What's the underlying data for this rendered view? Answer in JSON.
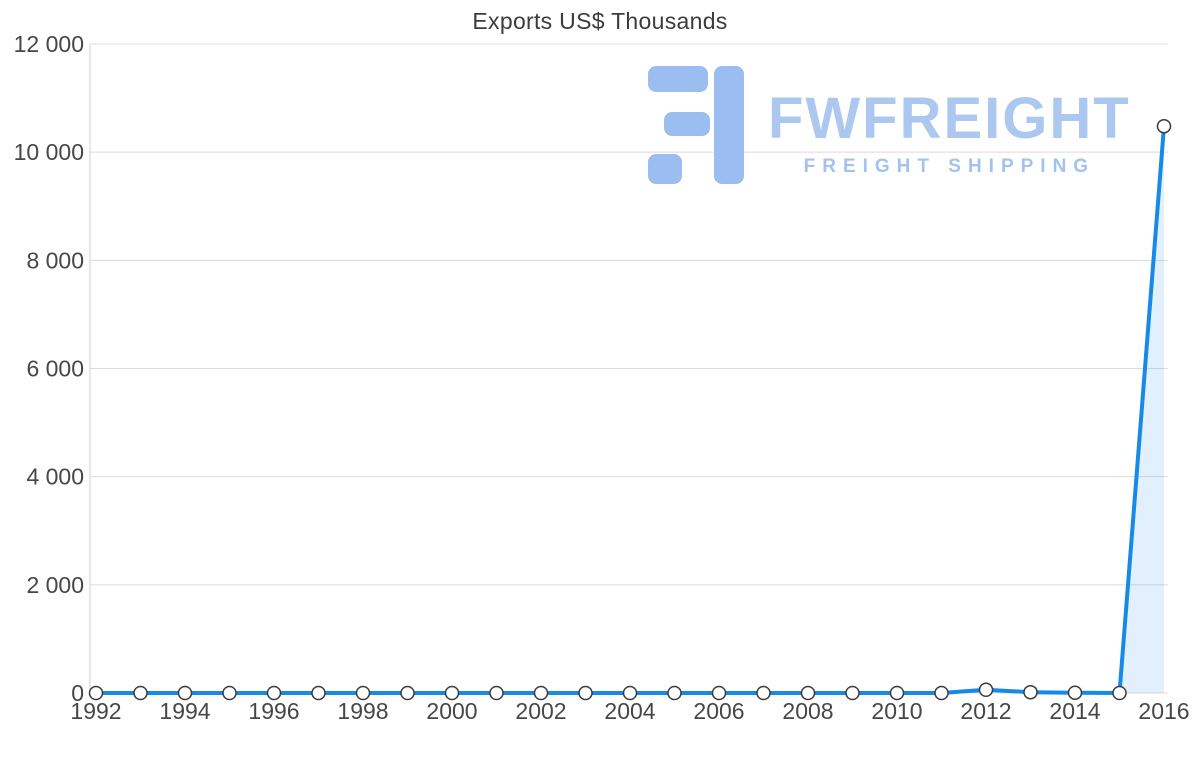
{
  "chart_data": {
    "type": "line",
    "title": "Exports US$ Thousands",
    "xlabel": "",
    "ylabel": "",
    "x": [
      1992,
      1993,
      1994,
      1995,
      1996,
      1997,
      1998,
      1999,
      2000,
      2001,
      2002,
      2003,
      2004,
      2005,
      2006,
      2007,
      2008,
      2009,
      2010,
      2011,
      2012,
      2013,
      2014,
      2015,
      2016
    ],
    "values": [
      0,
      0,
      0,
      0,
      0,
      0,
      0,
      0,
      0,
      0,
      0,
      0,
      0,
      0,
      0,
      0,
      0,
      0,
      0,
      0,
      60,
      15,
      5,
      0,
      10480
    ],
    "xticks": [
      1992,
      1994,
      1996,
      1998,
      2000,
      2002,
      2004,
      2006,
      2008,
      2010,
      2012,
      2014,
      2016
    ],
    "ylim": [
      0,
      12000
    ],
    "ytick_step": 2000,
    "grid": true,
    "legend": "none",
    "line_color": "#1789e6",
    "area_opacity": 0.13,
    "grid_color": "#dcdcdc",
    "axis_color": "#cfcfcf",
    "marker_fill": "#ffffff",
    "marker_stroke": "#3a3a3a"
  },
  "watermark": {
    "brand": "FWFREIGHT",
    "tagline": "FREIGHT SHIPPING",
    "brand_color": "#adc8f0",
    "logo_color": "#9cbdf0"
  }
}
